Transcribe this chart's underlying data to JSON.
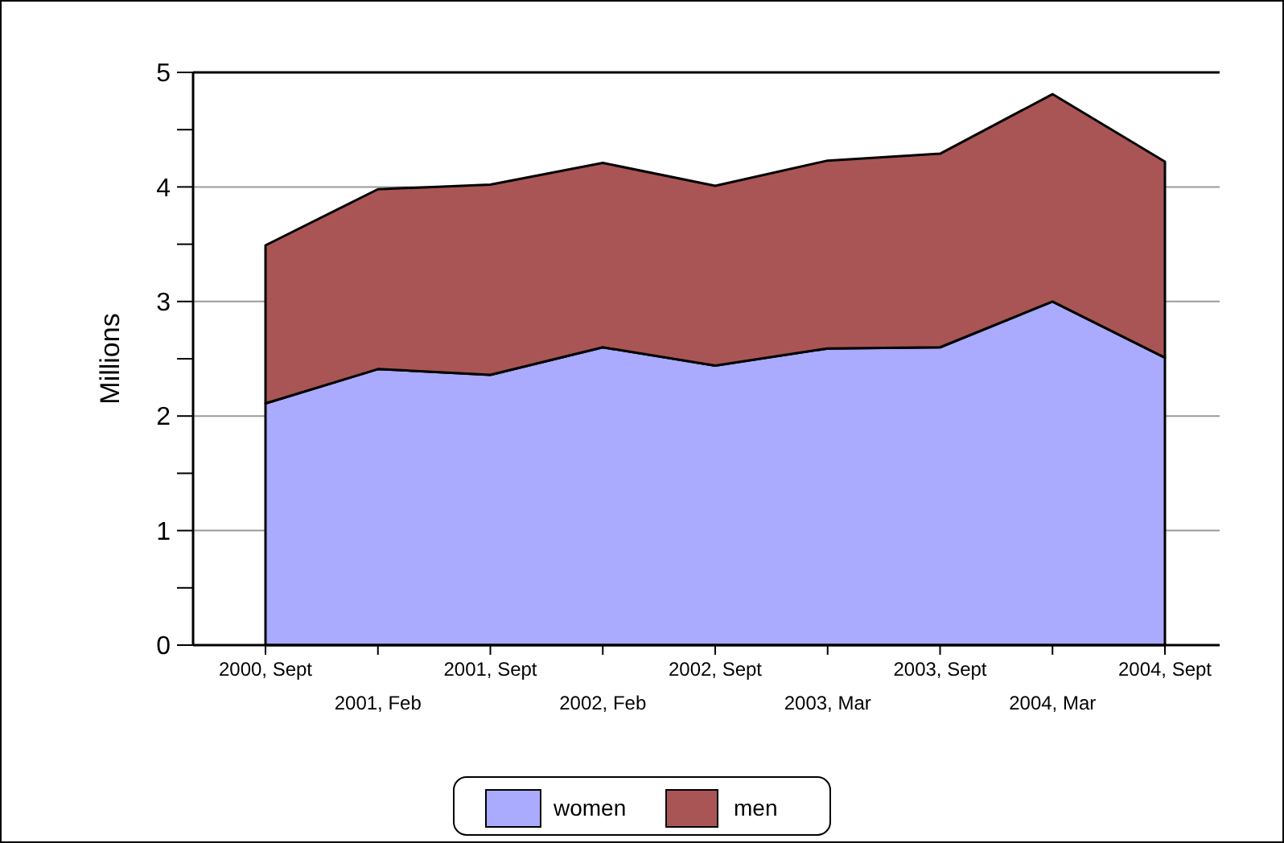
{
  "chart_data": {
    "type": "area",
    "stacked": true,
    "ylabel": "Millions",
    "categories": [
      "2000, Sept",
      "2001, Feb",
      "2001, Sept",
      "2002, Feb",
      "2002, Sept",
      "2003, Mar",
      "2003, Sept",
      "2004, Mar",
      "2004, Sept"
    ],
    "series": [
      {
        "name": "women",
        "color": "#aaaaff",
        "values": [
          2.11,
          2.41,
          2.36,
          2.6,
          2.44,
          2.59,
          2.6,
          3.0,
          2.51
        ]
      },
      {
        "name": "men",
        "color": "#aa5555",
        "values": [
          1.38,
          1.57,
          1.66,
          1.61,
          1.57,
          1.64,
          1.69,
          1.81,
          1.71
        ]
      }
    ],
    "ylim": [
      0,
      5
    ],
    "yticks": [
      0,
      {
        "value": 0.5,
        "label": null
      },
      1,
      {
        "value": 1.5,
        "label": null
      },
      2,
      {
        "value": 2.5,
        "label": null
      },
      3,
      {
        "value": 3.5,
        "label": null
      },
      4,
      {
        "value": 4.5,
        "label": null
      },
      5
    ],
    "grid": "y",
    "legend": "bottom"
  }
}
